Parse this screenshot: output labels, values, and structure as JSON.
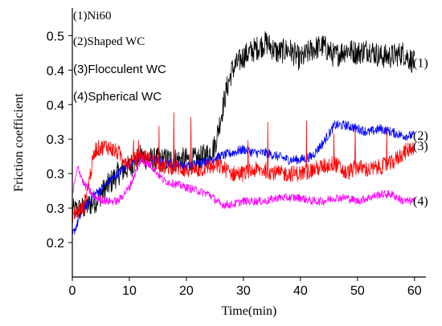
{
  "chart_data": {
    "type": "line",
    "title": "",
    "xlabel": "Time(min)",
    "ylabel": "Friction coefficient",
    "xlim": [
      0,
      62
    ],
    "ylim": [
      0.15,
      0.54
    ],
    "x_ticks": [
      0,
      10,
      20,
      30,
      40,
      50,
      60
    ],
    "y_ticks": [
      {
        "value": 0.2,
        "label": "0.2"
      },
      {
        "value": 0.25,
        "label": "0.3"
      },
      {
        "value": 0.3,
        "label": "0.3"
      },
      {
        "value": 0.35,
        "label": "0.3"
      },
      {
        "value": 0.4,
        "label": "0.4"
      },
      {
        "value": 0.45,
        "label": "0.4"
      },
      {
        "value": 0.5,
        "label": "0.5"
      }
    ],
    "grid": false,
    "legend": {
      "position": "top-left",
      "entries": [
        "(1)Ni60",
        "(2)Shaped WC",
        "(3)Flocculent  WC",
        "(4)Spherical WC"
      ]
    },
    "series": [
      {
        "label": "(1)",
        "color": "#000000",
        "x": [
          0,
          2,
          4,
          6,
          8,
          10,
          12,
          14,
          16,
          18,
          20,
          22,
          24,
          25,
          26,
          27,
          28,
          30,
          32,
          34,
          36,
          38,
          40,
          42,
          44,
          46,
          48,
          50,
          52,
          54,
          56,
          58,
          60
        ],
        "y": [
          0.245,
          0.25,
          0.26,
          0.28,
          0.3,
          0.31,
          0.325,
          0.32,
          0.32,
          0.32,
          0.32,
          0.32,
          0.33,
          0.34,
          0.38,
          0.42,
          0.45,
          0.47,
          0.48,
          0.49,
          0.475,
          0.48,
          0.465,
          0.48,
          0.485,
          0.47,
          0.48,
          0.475,
          0.48,
          0.47,
          0.47,
          0.475,
          0.46
        ]
      },
      {
        "label": "(2)",
        "color": "#0000ff",
        "x": [
          0,
          2,
          4,
          6,
          8,
          10,
          12,
          14,
          16,
          18,
          20,
          22,
          24,
          26,
          28,
          30,
          32,
          34,
          36,
          38,
          40,
          42,
          44,
          46,
          48,
          50,
          52,
          54,
          56,
          58,
          60
        ],
        "y": [
          0.21,
          0.25,
          0.27,
          0.285,
          0.3,
          0.315,
          0.325,
          0.32,
          0.315,
          0.315,
          0.31,
          0.315,
          0.32,
          0.325,
          0.33,
          0.335,
          0.33,
          0.33,
          0.325,
          0.32,
          0.32,
          0.325,
          0.345,
          0.37,
          0.37,
          0.365,
          0.36,
          0.365,
          0.36,
          0.355,
          0.355
        ]
      },
      {
        "label": "(3)",
        "color": "#ff0000",
        "x": [
          0,
          2,
          4,
          6,
          8,
          10,
          12,
          14,
          16,
          18,
          20,
          22,
          24,
          26,
          28,
          30,
          32,
          34,
          36,
          38,
          40,
          42,
          44,
          46,
          48,
          50,
          52,
          54,
          56,
          58,
          60
        ],
        "y": [
          0.24,
          0.25,
          0.335,
          0.34,
          0.33,
          0.315,
          0.325,
          0.32,
          0.31,
          0.31,
          0.305,
          0.305,
          0.31,
          0.31,
          0.3,
          0.3,
          0.305,
          0.305,
          0.3,
          0.3,
          0.3,
          0.305,
          0.31,
          0.315,
          0.3,
          0.31,
          0.305,
          0.31,
          0.315,
          0.33,
          0.34
        ]
      },
      {
        "label": "(4)",
        "color": "#ff00ff",
        "x": [
          0,
          1,
          2,
          4,
          6,
          8,
          10,
          12,
          14,
          16,
          18,
          20,
          22,
          24,
          26,
          28,
          30,
          32,
          34,
          36,
          38,
          40,
          42,
          44,
          46,
          48,
          50,
          52,
          54,
          56,
          58,
          60
        ],
        "y": [
          0.27,
          0.31,
          0.285,
          0.265,
          0.26,
          0.26,
          0.28,
          0.32,
          0.31,
          0.29,
          0.285,
          0.28,
          0.275,
          0.27,
          0.255,
          0.255,
          0.26,
          0.26,
          0.26,
          0.265,
          0.265,
          0.265,
          0.26,
          0.26,
          0.265,
          0.265,
          0.26,
          0.265,
          0.27,
          0.27,
          0.26,
          0.26
        ]
      }
    ]
  }
}
